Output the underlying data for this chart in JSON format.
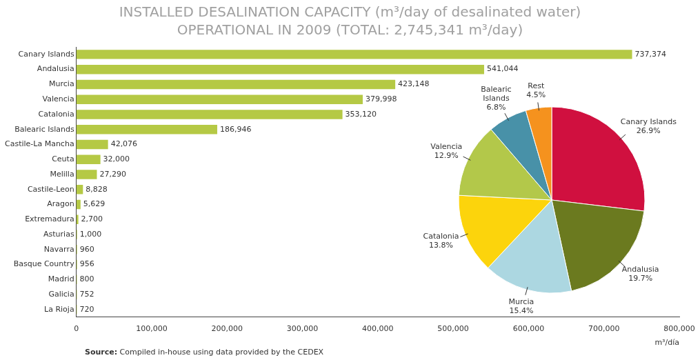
{
  "chart_data": [
    {
      "type": "bar",
      "orientation": "horizontal",
      "title": "INSTALLED DESALINATION CAPACITY (m³/day of desalinated water)\nOPERATIONAL IN 2009 (TOTAL: 2,745,341 m³/day)",
      "xlabel": "m³/día",
      "categories": [
        "Canary Islands",
        "Andalusia",
        "Murcia",
        "Valencia",
        "Catalonia",
        "Balearic Islands",
        "Castile-La Mancha",
        "Ceuta",
        "Melilla",
        "Castile-Leon",
        "Aragon",
        "Extremadura",
        "Asturias",
        "Navarra",
        "Basque Country",
        "Madrid",
        "Galicia",
        "La Rioja"
      ],
      "values": [
        737374,
        541044,
        423148,
        379998,
        353120,
        186946,
        42076,
        32000,
        27290,
        8828,
        5629,
        2700,
        1000,
        960,
        956,
        800,
        752,
        720
      ],
      "value_labels": [
        "737,374",
        "541,044",
        "423,148",
        "379,998",
        "353,120",
        "186,946",
        "42,076",
        "32,000",
        "27,290",
        "8,828",
        "5,629",
        "2,700",
        "1,000",
        "960",
        "956",
        "800",
        "752",
        "720"
      ],
      "color": "#b5c945",
      "grid": false,
      "legend": false,
      "xlim": [
        0,
        800000
      ],
      "xticks": [
        0,
        {
          "value": 100000,
          "label": "100,000"
        },
        {
          "value": 200000,
          "label": "200,000"
        },
        {
          "value": 300000,
          "label": "300,000"
        },
        {
          "value": 400000,
          "label": "400,000"
        },
        {
          "value": 500000,
          "label": "500,000"
        },
        {
          "value": 600000,
          "label": "600,000"
        },
        {
          "value": 700000,
          "label": "700,000"
        },
        {
          "value": 800000,
          "label": "800,000"
        }
      ],
      "annotations": [
        "Source: Compiled in-house using data provided by the CEDEX"
      ]
    },
    {
      "type": "pie",
      "legend": false,
      "categories": [
        "Canary Islands",
        "Andalusia",
        "Murcia",
        "Catalonia",
        "Valencia",
        "Balearic Islands",
        "Rest"
      ],
      "values": [
        26.9,
        19.7,
        15.4,
        13.8,
        12.9,
        6.8,
        4.5
      ],
      "colors": [
        "#d0103f",
        "#6b7a1f",
        "#acd7e1",
        "#fcd40c",
        "#b3c84a",
        "#4891a8",
        "#f5921e"
      ],
      "value_labels": [
        "26.9%",
        "19.7%",
        "15.4%",
        "13.8%",
        "12.9%",
        "6.8%",
        "4.5%"
      ]
    }
  ]
}
